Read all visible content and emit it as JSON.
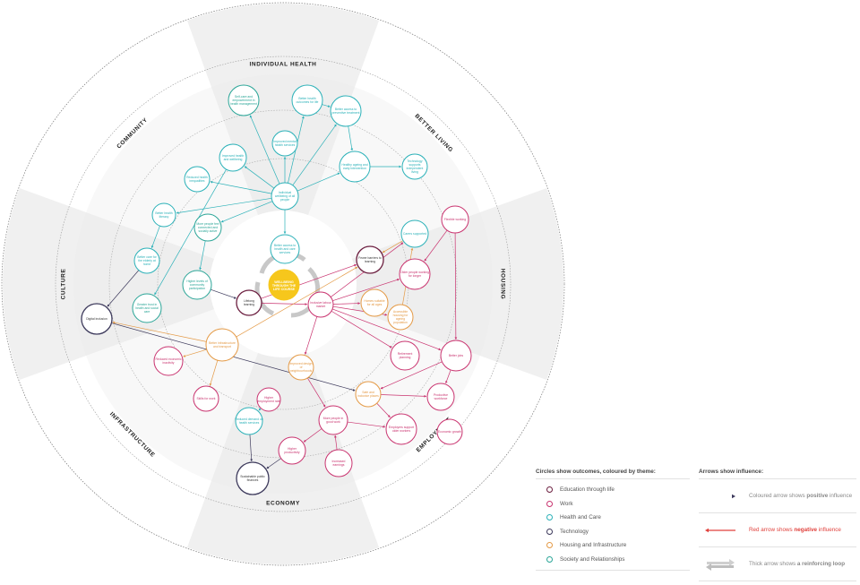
{
  "center": {
    "text": "WELLBEING THROUGH THE LIFE COURSE"
  },
  "sectors": [
    "INDIVIDUAL HEALTH",
    "BETTER LIVING",
    "HOUSING",
    "EMPLOYMENT",
    "ECONOMY",
    "INFRASTRUCTURE",
    "CULTURE",
    "COMMUNITY"
  ],
  "themes": {
    "education": "#6b1e3f",
    "work": "#c9336f",
    "health": "#2bb1b8",
    "technology": "#3d3a5c",
    "housing": "#e49a46",
    "society": "#2aa597"
  },
  "nodes": [
    {
      "id": "n1",
      "theme": "society",
      "text": "Self-care and empowerment in health management"
    },
    {
      "id": "n2",
      "theme": "health",
      "text": "Improved mental health services"
    },
    {
      "id": "n3",
      "theme": "health",
      "text": "Better health outcomes for life"
    },
    {
      "id": "n4",
      "theme": "health",
      "text": "Better access to preventive treatment"
    },
    {
      "id": "n5",
      "theme": "health",
      "text": "Healthy ageing and early intervention"
    },
    {
      "id": "n6",
      "theme": "health",
      "text": "Technology supports independent living"
    },
    {
      "id": "n7",
      "theme": "health",
      "text": "Improved health and wellbeing"
    },
    {
      "id": "n8",
      "theme": "health",
      "text": "Individual wellbeing of all people"
    },
    {
      "id": "n9",
      "theme": "health",
      "text": "Reduced health inequalities"
    },
    {
      "id": "n10",
      "theme": "health",
      "text": "Better health literacy"
    },
    {
      "id": "n11",
      "theme": "society",
      "text": "More people feel connected and socially active"
    },
    {
      "id": "n12",
      "theme": "health",
      "text": "Better access to health and care services"
    },
    {
      "id": "n13",
      "theme": "health",
      "text": "Better care for the elderly at home"
    },
    {
      "id": "n14",
      "theme": "society",
      "text": "Higher levels of community participation"
    },
    {
      "id": "n15",
      "theme": "society",
      "text": "Greater trust in health and social care"
    },
    {
      "id": "n16",
      "theme": "technology",
      "text": "Digital inclusion"
    },
    {
      "id": "n17",
      "theme": "education",
      "text": "Lifelong learning"
    },
    {
      "id": "n18",
      "theme": "education",
      "text": "Fewer barriers to learning"
    },
    {
      "id": "n19",
      "theme": "health",
      "text": "Carers supported"
    },
    {
      "id": "n20",
      "theme": "work",
      "text": "Older people working for longer"
    },
    {
      "id": "n21",
      "theme": "housing",
      "text": "Homes suitable for all ages"
    },
    {
      "id": "n22",
      "theme": "housing",
      "text": "Accessible housing for ageing population"
    },
    {
      "id": "n23",
      "theme": "work",
      "text": "Flexible working"
    },
    {
      "id": "n24",
      "theme": "work",
      "text": "Better jobs"
    },
    {
      "id": "n25",
      "theme": "housing",
      "text": "Better infrastructure and transport"
    },
    {
      "id": "n26",
      "theme": "work",
      "text": "Reduced economic inactivity"
    },
    {
      "id": "n27",
      "theme": "work",
      "text": "Skills for work"
    },
    {
      "id": "n28",
      "theme": "housing",
      "text": "Improved design of neighbourhoods"
    },
    {
      "id": "n29",
      "theme": "housing",
      "text": "Safe and inclusive places"
    },
    {
      "id": "n30",
      "theme": "work",
      "text": "Retirement planning"
    },
    {
      "id": "n31",
      "theme": "work",
      "text": "Productive workforce"
    },
    {
      "id": "n32",
      "theme": "work",
      "text": "More people in good work"
    },
    {
      "id": "n33",
      "theme": "work",
      "text": "Employers support older workers"
    },
    {
      "id": "n34",
      "theme": "health",
      "text": "Reduced demand on health services"
    },
    {
      "id": "n35",
      "theme": "work",
      "text": "Higher productivity"
    },
    {
      "id": "n36",
      "theme": "work",
      "text": "Increased earnings"
    },
    {
      "id": "n37",
      "theme": "work",
      "text": "Economic growth"
    },
    {
      "id": "n38",
      "theme": "work",
      "text": "Inclusive labour market"
    },
    {
      "id": "n39",
      "theme": "technology",
      "text": "Sustainable public finances"
    },
    {
      "id": "n40",
      "theme": "work",
      "text": "Higher employment rate"
    }
  ],
  "legend": {
    "themes_title": "Circles show outcomes, coloured by theme:",
    "themes": [
      {
        "label": "Education through life",
        "color": "#6b1e3f"
      },
      {
        "label": "Work",
        "color": "#c9336f"
      },
      {
        "label": "Health and Care",
        "color": "#2bb1b8"
      },
      {
        "label": "Technology",
        "color": "#3d3a5c"
      },
      {
        "label": "Housing and Infrastructure",
        "color": "#e49a46"
      },
      {
        "label": "Society and Relationships",
        "color": "#2aa597"
      }
    ],
    "arrows_title": "Arrows show influence:",
    "arrows": [
      {
        "pre": "Coloured arrow shows ",
        "bold": "positive",
        "post": " influence"
      },
      {
        "pre": "Red arrow shows ",
        "bold": "negative",
        "post": " influence"
      },
      {
        "pre": "Thick arrow shows ",
        "bold": "a reinforcing loop",
        "post": ""
      }
    ]
  }
}
